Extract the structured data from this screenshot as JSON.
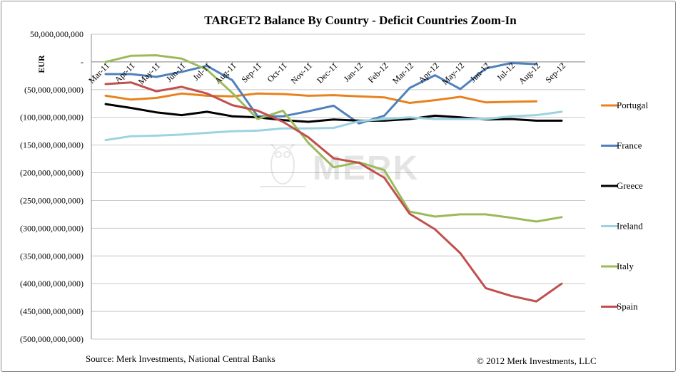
{
  "chart_data": {
    "type": "line",
    "title": "TARGET2 Balance By Country - Deficit Countries Zoom-In",
    "ylabel": "EUR",
    "xlabel": "",
    "ylim": [
      -500000000000,
      50000000000
    ],
    "y_ticks": [
      50000000000,
      0,
      -50000000000,
      -100000000000,
      -150000000000,
      -200000000000,
      -250000000000,
      -300000000000,
      -350000000000,
      -400000000000,
      -450000000000,
      -500000000000
    ],
    "y_tick_labels": [
      "50,000,000,000",
      "-",
      "(50,000,000,000)",
      "(100,000,000,000)",
      "(150,000,000,000)",
      "(200,000,000,000)",
      "(250,000,000,000)",
      "(300,000,000,000)",
      "(350,000,000,000)",
      "(400,000,000,000)",
      "(450,000,000,000)",
      "(500,000,000,000)"
    ],
    "categories": [
      "Mar-11",
      "Apr-11",
      "May-11",
      "Jun-11",
      "Jul-11",
      "Aug-11",
      "Sep-11",
      "Oct-11",
      "Nov-11",
      "Dec-11",
      "Jan-12",
      "Feb-12",
      "Mar-12",
      "Apr-12",
      "May-12",
      "Jun-12",
      "Jul-12",
      "Aug-12",
      "Sep-12"
    ],
    "legend_position": "right",
    "grid": "horizontal",
    "series": [
      {
        "name": "Portugal",
        "color": "#e8821e",
        "values": [
          -61,
          -68,
          -65,
          -57,
          -61,
          -62,
          -57,
          -58,
          -61,
          -60,
          -62,
          -64,
          -74,
          -69,
          -63,
          -73,
          -72,
          -71,
          null
        ]
      },
      {
        "name": "France",
        "color": "#4f81bd",
        "values": [
          -22,
          -22,
          -27,
          -18,
          -7,
          -33,
          -98,
          -98,
          -89,
          -79,
          -111,
          -97,
          -47,
          -24,
          -49,
          -12,
          -2,
          -4,
          null
        ]
      },
      {
        "name": "Greece",
        "color": "#000000",
        "values": [
          -76,
          -83,
          -91,
          -96,
          -90,
          -98,
          -100,
          -105,
          -108,
          -104,
          -106,
          -106,
          -103,
          -97,
          -100,
          -104,
          -103,
          -106,
          -106
        ]
      },
      {
        "name": "Ireland",
        "color": "#9cd3e2",
        "values": [
          -141,
          -134,
          -133,
          -131,
          -128,
          -125,
          -124,
          -120,
          -120,
          -119,
          -107,
          -103,
          -100,
          -103,
          -103,
          -103,
          -98,
          -96,
          -90
        ]
      },
      {
        "name": "Italy",
        "color": "#9bbb59",
        "values": [
          0,
          11,
          12,
          6,
          -14,
          -56,
          -103,
          -88,
          -146,
          -190,
          -181,
          -195,
          -270,
          -279,
          -275,
          -275,
          -281,
          -288,
          -280
        ]
      },
      {
        "name": "Spain",
        "color": "#c0504d",
        "values": [
          -40,
          -37,
          -53,
          -45,
          -57,
          -78,
          -88,
          -108,
          -136,
          -174,
          -182,
          -209,
          -274,
          -302,
          -345,
          -408,
          -422,
          -432,
          -400
        ]
      }
    ],
    "value_unit_note": "billions of EUR"
  },
  "watermark": "MERK",
  "source": "Source: Merk Investments, National Central Banks",
  "copyright": "© 2012 Merk Investments, LLC"
}
